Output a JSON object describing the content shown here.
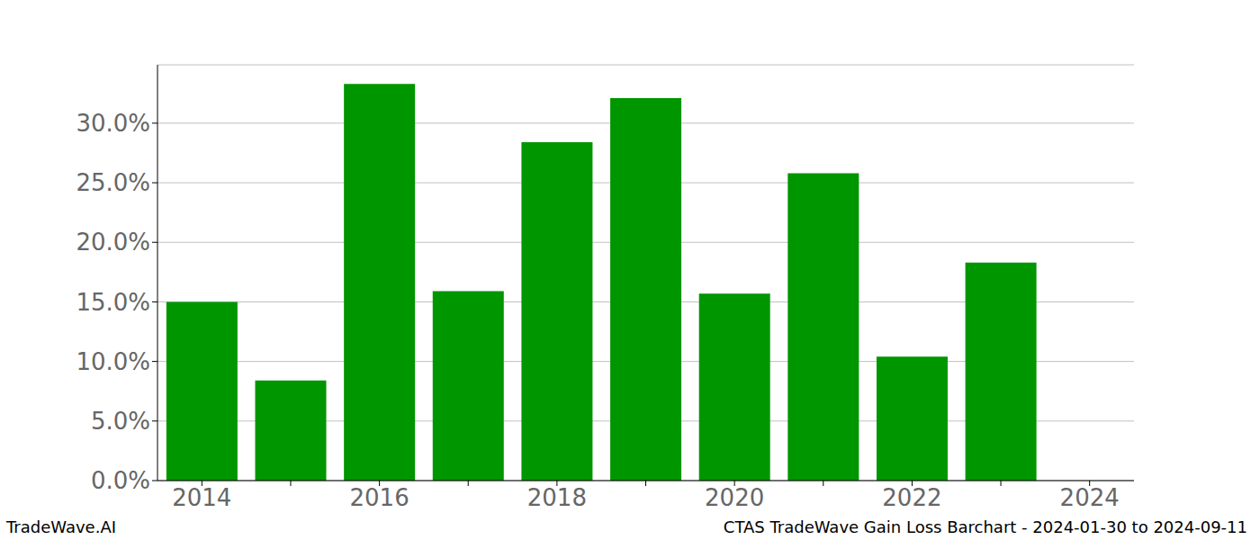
{
  "chart_data": {
    "type": "bar",
    "title": "CTAS TradeWave Gain Loss Barchart - 2024-01-30 to 2024-09-11",
    "subtitle": "TradeWave.AI",
    "categories": [
      "2014",
      null,
      "2016",
      null,
      "2018",
      null,
      "2020",
      null,
      "2022",
      null,
      "2024"
    ],
    "values": [
      15.0,
      8.4,
      33.3,
      15.9,
      28.4,
      32.1,
      15.7,
      25.8,
      10.4,
      18.3,
      null
    ],
    "color": "#009600",
    "ylim": [
      0,
      34.9
    ],
    "yticks": [
      {
        "value": 0,
        "label": "0.0%"
      },
      {
        "value": 5,
        "label": "5.0%"
      },
      {
        "value": 10,
        "label": "10.0%"
      },
      {
        "value": 15,
        "label": "15.0%"
      },
      {
        "value": 20,
        "label": "20.0%"
      },
      {
        "value": 25,
        "label": "25.0%"
      },
      {
        "value": 30,
        "label": "30.0%"
      }
    ],
    "grid": true
  }
}
